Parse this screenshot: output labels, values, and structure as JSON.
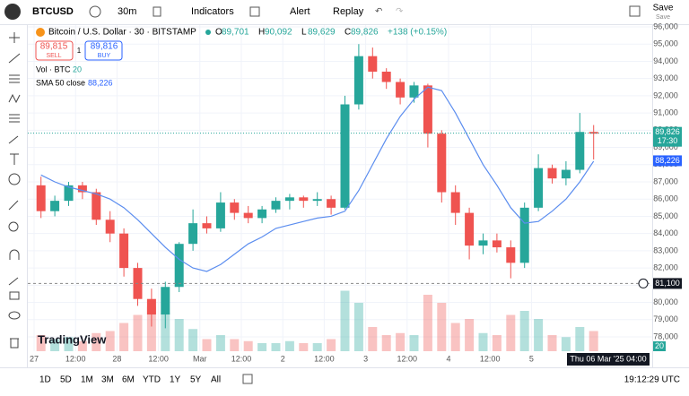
{
  "header": {
    "symbol": "BTCUSD",
    "interval": "30m",
    "indicators": "Indicators",
    "alert": "Alert",
    "replay": "Replay",
    "save": "Save",
    "save_sub": "Save"
  },
  "legend": {
    "title": "Bitcoin / U.S. Dollar · 30 · BITSTAMP",
    "ohlc": [
      {
        "label": "O",
        "value": "89,701"
      },
      {
        "label": "H",
        "value": "90,092"
      },
      {
        "label": "L",
        "value": "89,629"
      },
      {
        "label": "C",
        "value": "89,826"
      }
    ],
    "change": "+138 (+0.15%)",
    "sell_price": "89,815",
    "sell": "SELL",
    "spread": "1",
    "buy_price": "89,816",
    "buy": "BUY",
    "vol_label": "Vol · BTC",
    "vol_value": "20",
    "sma_label": "SMA 50 close",
    "sma_value": "88,226"
  },
  "chart_data": {
    "type": "candlestick",
    "up_color": "#26a69a",
    "down_color": "#ef5350",
    "sma_color": "#5b8def",
    "xticks": [
      "27",
      "12:00",
      "28",
      "12:00",
      "Mar",
      "12:00",
      "2",
      "12:00",
      "3",
      "12:00",
      "4",
      "12:00",
      "5"
    ],
    "ylim": [
      78000,
      96000
    ],
    "yticks": [
      {
        "value": 78000,
        "label": "78,000"
      },
      {
        "value": 79000,
        "label": "79,000"
      },
      {
        "value": 80000,
        "label": "80,000"
      },
      {
        "value": 81000,
        "label": "81,000"
      },
      {
        "value": 82000,
        "label": "82,000"
      },
      {
        "value": 83000,
        "label": "83,000"
      },
      {
        "value": 84000,
        "label": "84,000"
      },
      {
        "value": 85000,
        "label": "85,000"
      },
      {
        "value": 86000,
        "label": "86,000"
      },
      {
        "value": 87000,
        "label": "87,000"
      },
      {
        "value": 88000,
        "label": "88,000"
      },
      {
        "value": 89000,
        "label": "89,000"
      },
      {
        "value": 90000,
        "label": "90,000"
      },
      {
        "value": 91000,
        "label": "91,000"
      },
      {
        "value": 92000,
        "label": "92,000"
      },
      {
        "value": 93000,
        "label": "93,000"
      },
      {
        "value": 94000,
        "label": "94,000"
      },
      {
        "value": 95000,
        "label": "95,000"
      },
      {
        "value": 96000,
        "label": "96,000"
      }
    ],
    "vlim": [
      0,
      200
    ],
    "candles": [
      {
        "o": 86800,
        "h": 87300,
        "l": 84900,
        "c": 85300,
        "v": 40
      },
      {
        "o": 85300,
        "h": 86200,
        "l": 85000,
        "c": 85900,
        "v": 30
      },
      {
        "o": 85900,
        "h": 87000,
        "l": 85600,
        "c": 86800,
        "v": 35
      },
      {
        "o": 86800,
        "h": 87000,
        "l": 86000,
        "c": 86400,
        "v": 25
      },
      {
        "o": 86400,
        "h": 86600,
        "l": 84500,
        "c": 84800,
        "v": 45
      },
      {
        "o": 84800,
        "h": 85300,
        "l": 83500,
        "c": 84000,
        "v": 50
      },
      {
        "o": 84000,
        "h": 84300,
        "l": 81500,
        "c": 82000,
        "v": 70
      },
      {
        "o": 82000,
        "h": 82300,
        "l": 79800,
        "c": 80200,
        "v": 90
      },
      {
        "o": 80200,
        "h": 80800,
        "l": 78600,
        "c": 79300,
        "v": 110
      },
      {
        "o": 79300,
        "h": 81200,
        "l": 78500,
        "c": 80900,
        "v": 95
      },
      {
        "o": 80900,
        "h": 83500,
        "l": 80600,
        "c": 83400,
        "v": 80
      },
      {
        "o": 83400,
        "h": 85400,
        "l": 83000,
        "c": 84600,
        "v": 55
      },
      {
        "o": 84600,
        "h": 85000,
        "l": 84000,
        "c": 84300,
        "v": 30
      },
      {
        "o": 84300,
        "h": 86400,
        "l": 84100,
        "c": 85800,
        "v": 40
      },
      {
        "o": 85800,
        "h": 86000,
        "l": 84800,
        "c": 85200,
        "v": 30
      },
      {
        "o": 85200,
        "h": 85600,
        "l": 84600,
        "c": 84900,
        "v": 25
      },
      {
        "o": 84900,
        "h": 85600,
        "l": 84600,
        "c": 85400,
        "v": 20
      },
      {
        "o": 85400,
        "h": 86100,
        "l": 85200,
        "c": 85900,
        "v": 20
      },
      {
        "o": 85900,
        "h": 86300,
        "l": 85400,
        "c": 86100,
        "v": 25
      },
      {
        "o": 86100,
        "h": 86200,
        "l": 85500,
        "c": 85900,
        "v": 20
      },
      {
        "o": 85900,
        "h": 86400,
        "l": 85600,
        "c": 86000,
        "v": 20
      },
      {
        "o": 86000,
        "h": 86200,
        "l": 85100,
        "c": 85500,
        "v": 30
      },
      {
        "o": 85500,
        "h": 92000,
        "l": 85400,
        "c": 91500,
        "v": 150
      },
      {
        "o": 91500,
        "h": 95000,
        "l": 91200,
        "c": 94300,
        "v": 120
      },
      {
        "o": 94300,
        "h": 94800,
        "l": 93000,
        "c": 93400,
        "v": 60
      },
      {
        "o": 93400,
        "h": 93600,
        "l": 92400,
        "c": 92800,
        "v": 40
      },
      {
        "o": 92800,
        "h": 93000,
        "l": 91500,
        "c": 91900,
        "v": 45
      },
      {
        "o": 91900,
        "h": 92800,
        "l": 91600,
        "c": 92600,
        "v": 40
      },
      {
        "o": 92600,
        "h": 92700,
        "l": 89000,
        "c": 89800,
        "v": 140
      },
      {
        "o": 89800,
        "h": 90000,
        "l": 85800,
        "c": 86400,
        "v": 120
      },
      {
        "o": 86400,
        "h": 86800,
        "l": 84500,
        "c": 85200,
        "v": 70
      },
      {
        "o": 85200,
        "h": 85500,
        "l": 82500,
        "c": 83300,
        "v": 80
      },
      {
        "o": 83300,
        "h": 84000,
        "l": 82800,
        "c": 83600,
        "v": 45
      },
      {
        "o": 83600,
        "h": 84000,
        "l": 82900,
        "c": 83200,
        "v": 40
      },
      {
        "o": 83200,
        "h": 83600,
        "l": 81400,
        "c": 82300,
        "v": 90
      },
      {
        "o": 82300,
        "h": 85800,
        "l": 82000,
        "c": 85500,
        "v": 100
      },
      {
        "o": 85500,
        "h": 88600,
        "l": 85300,
        "c": 87800,
        "v": 80
      },
      {
        "o": 87800,
        "h": 88000,
        "l": 86900,
        "c": 87200,
        "v": 40
      },
      {
        "o": 87200,
        "h": 88200,
        "l": 86800,
        "c": 87700,
        "v": 35
      },
      {
        "o": 87700,
        "h": 91000,
        "l": 87500,
        "c": 89900,
        "v": 60
      },
      {
        "o": 89900,
        "h": 90300,
        "l": 88300,
        "c": 89800,
        "v": 50
      }
    ],
    "sma": [
      87400,
      87000,
      86700,
      86500,
      86300,
      86000,
      85500,
      84800,
      84000,
      83200,
      82500,
      82000,
      81800,
      82200,
      82800,
      83400,
      83800,
      84300,
      84500,
      84700,
      84900,
      85000,
      85300,
      86500,
      88000,
      89500,
      90800,
      91800,
      92500,
      92300,
      91000,
      89500,
      88000,
      86800,
      85500,
      84600,
      84700,
      85300,
      86000,
      87000,
      88200
    ],
    "tags": {
      "last": {
        "value": 89826,
        "label": "89,826"
      },
      "last_time": "17:30",
      "sma": {
        "value": 88226,
        "label": "88,226"
      },
      "cross": {
        "value": 81100,
        "label": "81,100"
      },
      "vol": "20",
      "date": "Thu 06 Mar '25  04:00"
    }
  },
  "watermark": "TradingView",
  "footer": {
    "ranges": [
      "1D",
      "5D",
      "1M",
      "3M",
      "6M",
      "YTD",
      "1Y",
      "5Y",
      "All"
    ],
    "time": "19:12:29 UTC"
  }
}
